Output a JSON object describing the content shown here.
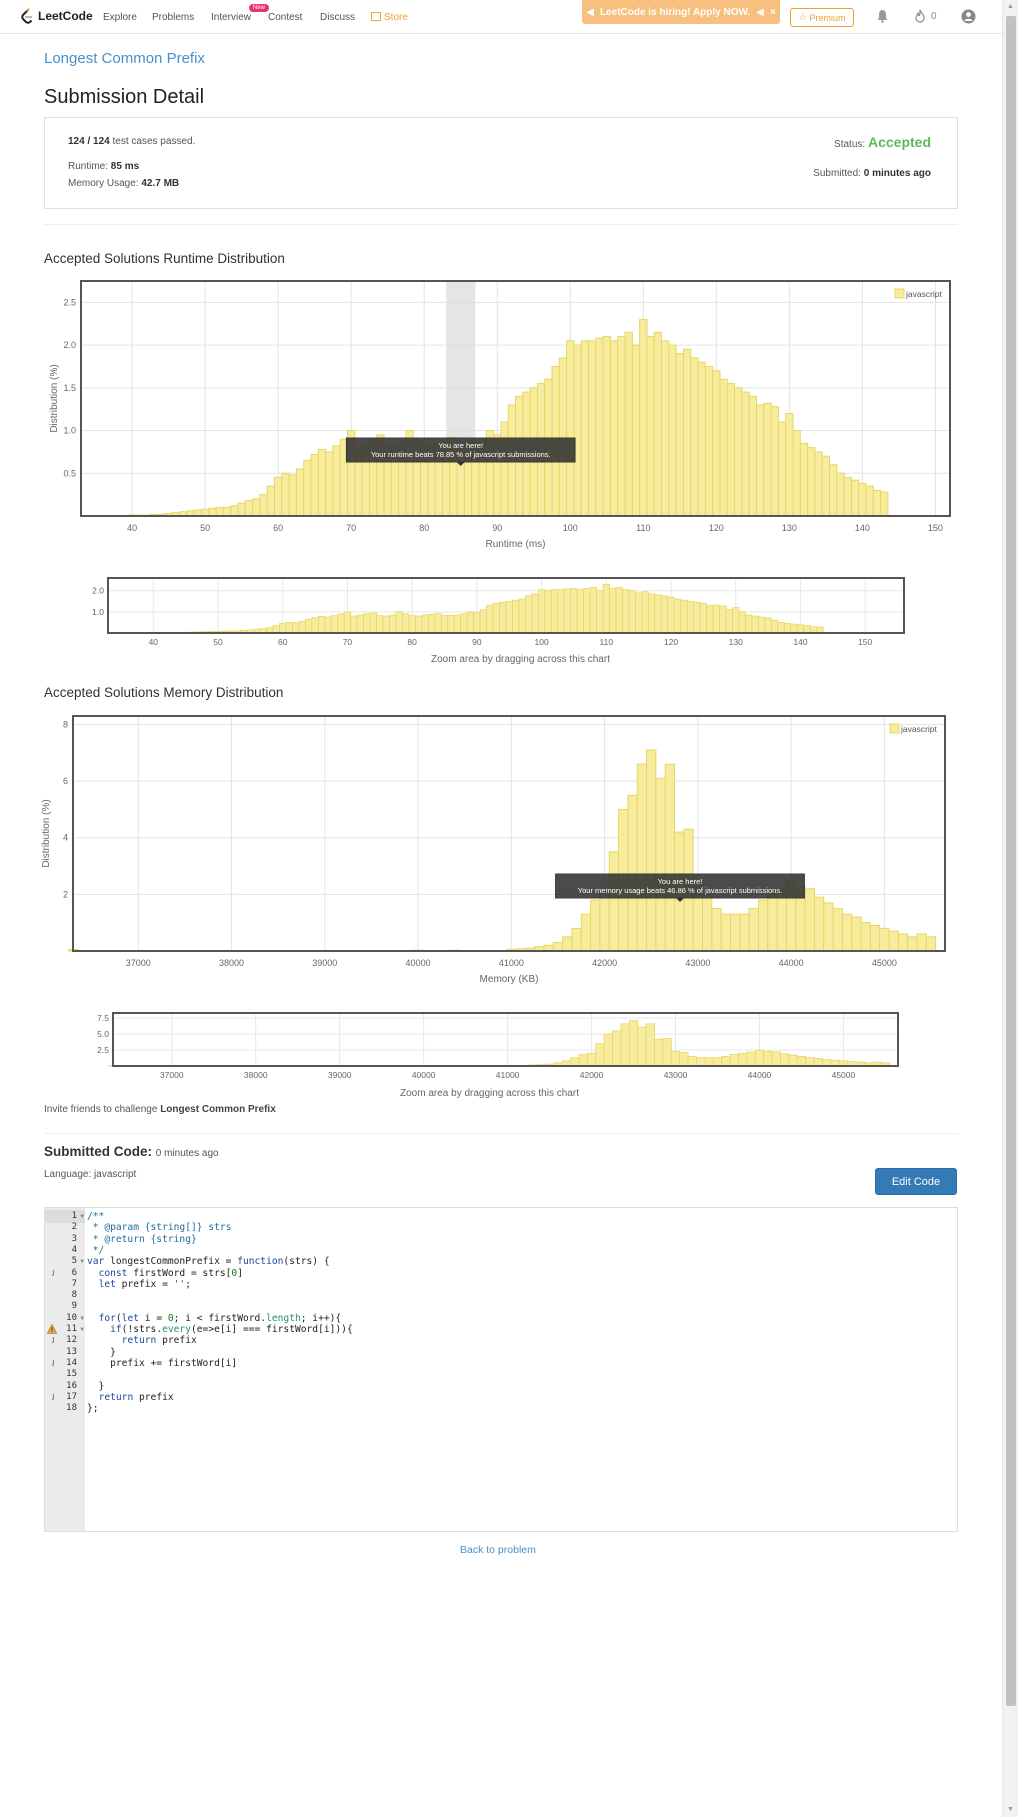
{
  "nav": {
    "logo": "LeetCode",
    "items": [
      "Explore",
      "Problems",
      "Interview",
      "Contest",
      "Discuss",
      "Store"
    ],
    "new_badge": "New",
    "hiring": "LeetCode is hiring! Apply NOW.",
    "premium": "Premium",
    "streak_count": "0",
    "icons": [
      "bell-icon",
      "fire-icon",
      "user-avatar-icon"
    ]
  },
  "problem_link": "Longest Common Prefix",
  "page_title": "Submission Detail",
  "summary": {
    "cases_count": "124 / 124",
    "cases_text": "test cases passed.",
    "runtime_label": "Runtime:",
    "runtime_value": "85 ms",
    "memory_label": "Memory Usage:",
    "memory_value": "42.7 MB",
    "status_label": "Status:",
    "status_value": "Accepted",
    "submitted_label": "Submitted:",
    "submitted_value": "0 minutes ago"
  },
  "runtime_section_title": "Accepted Solutions Runtime Distribution",
  "memory_section_title": "Accepted Solutions Memory Distribution",
  "zoom_caption": "Zoom area by dragging across this chart",
  "colors": {
    "bar_fill": "#f7ec9e",
    "bar_stroke": "#e7d764",
    "accepted": "#5cb85c",
    "link": "#4a90c8",
    "button": "#337ab7"
  },
  "chart_data": [
    {
      "type": "bar",
      "name": "runtime",
      "xlabel": "Runtime (ms)",
      "ylabel": "Distribution (%)",
      "xlim": [
        33,
        152
      ],
      "ylim": [
        0,
        2.75
      ],
      "xticks": [
        40,
        50,
        60,
        70,
        80,
        90,
        100,
        110,
        120,
        130,
        140,
        150
      ],
      "yticks": [
        0.5,
        1.0,
        1.5,
        2.0,
        2.5
      ],
      "bin_width": 1,
      "grid": true,
      "legend": "top-right",
      "series": [
        {
          "name": "javascript"
        }
      ],
      "highlight": [
        83,
        87
      ],
      "tooltip": {
        "title": "You are here!",
        "text": "Your runtime beats 78.85 % of javascript submissions."
      },
      "x": [
        40,
        41,
        42,
        43,
        44,
        45,
        46,
        47,
        48,
        49,
        50,
        51,
        52,
        53,
        54,
        55,
        56,
        57,
        58,
        59,
        60,
        61,
        62,
        63,
        64,
        65,
        66,
        67,
        68,
        69,
        70,
        71,
        72,
        73,
        74,
        75,
        76,
        77,
        78,
        79,
        80,
        81,
        82,
        83,
        84,
        85,
        86,
        87,
        88,
        89,
        90,
        91,
        92,
        93,
        94,
        95,
        96,
        97,
        98,
        99,
        100,
        101,
        102,
        103,
        104,
        105,
        106,
        107,
        108,
        109,
        110,
        111,
        112,
        113,
        114,
        115,
        116,
        117,
        118,
        119,
        120,
        121,
        122,
        123,
        124,
        125,
        126,
        127,
        128,
        129,
        130,
        131,
        132,
        133,
        134,
        135,
        136,
        137,
        138,
        139,
        140,
        141,
        142,
        143
      ],
      "values": [
        0.01,
        0.01,
        0.01,
        0.02,
        0.02,
        0.03,
        0.04,
        0.05,
        0.06,
        0.07,
        0.08,
        0.09,
        0.1,
        0.1,
        0.12,
        0.15,
        0.18,
        0.2,
        0.25,
        0.35,
        0.45,
        0.5,
        0.48,
        0.55,
        0.65,
        0.72,
        0.78,
        0.75,
        0.82,
        0.9,
        1.0,
        0.8,
        0.85,
        0.9,
        0.95,
        0.82,
        0.8,
        0.85,
        1.0,
        0.9,
        0.82,
        0.8,
        0.85,
        0.88,
        0.92,
        0.82,
        0.83,
        0.85,
        0.9,
        1.0,
        0.95,
        1.1,
        1.3,
        1.4,
        1.45,
        1.5,
        1.55,
        1.6,
        1.75,
        1.85,
        2.05,
        2.0,
        2.05,
        2.05,
        2.08,
        2.1,
        2.05,
        2.1,
        2.15,
        2.0,
        2.3,
        2.1,
        2.15,
        2.05,
        2.0,
        1.9,
        1.95,
        1.85,
        1.8,
        1.75,
        1.7,
        1.6,
        1.55,
        1.5,
        1.45,
        1.4,
        1.3,
        1.32,
        1.28,
        1.1,
        1.2,
        1.0,
        0.85,
        0.8,
        0.75,
        0.7,
        0.6,
        0.5,
        0.45,
        0.42,
        0.38,
        0.35,
        0.3,
        0.28
      ]
    },
    {
      "type": "bar",
      "name": "memory",
      "xlabel": "Memory (KB)",
      "ylabel": "Distribution (%)",
      "xlim": [
        36300,
        45650
      ],
      "ylim": [
        0,
        8.3
      ],
      "xticks": [
        37000,
        38000,
        39000,
        40000,
        41000,
        42000,
        43000,
        44000,
        45000
      ],
      "yticks": [
        2,
        4,
        6,
        8
      ],
      "bin_width": 100,
      "grid": true,
      "legend": "top-right",
      "series": [
        {
          "name": "javascript"
        }
      ],
      "tooltip": {
        "title": "You are here!",
        "text": "Your memory usage beats 46.86 % of javascript submissions."
      },
      "x": [
        36300,
        40000,
        40400,
        41000,
        41100,
        41200,
        41300,
        41400,
        41500,
        41600,
        41700,
        41800,
        41900,
        42000,
        42100,
        42200,
        42300,
        42400,
        42500,
        42600,
        42700,
        42800,
        42900,
        43000,
        43100,
        43200,
        43300,
        43400,
        43500,
        43600,
        43700,
        43800,
        43900,
        44000,
        44100,
        44200,
        44300,
        44400,
        44500,
        44600,
        44700,
        44800,
        44900,
        45000,
        45100,
        45200,
        45300,
        45400,
        45500
      ],
      "values": [
        0.05,
        0.03,
        0.03,
        0.05,
        0.08,
        0.1,
        0.15,
        0.2,
        0.3,
        0.5,
        0.8,
        1.3,
        1.8,
        2.0,
        3.5,
        5.0,
        5.5,
        6.6,
        7.1,
        6.1,
        6.6,
        4.2,
        4.3,
        2.3,
        2.1,
        1.5,
        1.3,
        1.3,
        1.3,
        1.5,
        1.8,
        2.0,
        2.2,
        2.5,
        2.3,
        2.2,
        1.9,
        1.7,
        1.5,
        1.3,
        1.2,
        1.0,
        0.9,
        0.8,
        0.7,
        0.6,
        0.5,
        0.6,
        0.5
      ]
    }
  ],
  "invite": {
    "prefix": "Invite friends to challenge",
    "problem": "Longest Common Prefix"
  },
  "code_section": {
    "title": "Submitted Code:",
    "when": "0 minutes ago",
    "language": "Language: javascript",
    "edit_button": "Edit Code"
  },
  "code_lines": [
    "/**",
    " * @param {string[]} strs",
    " * @return {string}",
    " */",
    "var longestCommonPrefix = function(strs) {",
    "  const firstWord = strs[0]",
    "  let prefix = '';",
    "",
    "",
    "  for(let i = 0; i < firstWord.length; i++){",
    "    if(!strs.every(e=>e[i] === firstWord[i])){",
    "      return prefix",
    "    }",
    "    prefix += firstWord[i]",
    "",
    "  }",
    "  return prefix",
    "};"
  ],
  "back_link": "Back to problem"
}
